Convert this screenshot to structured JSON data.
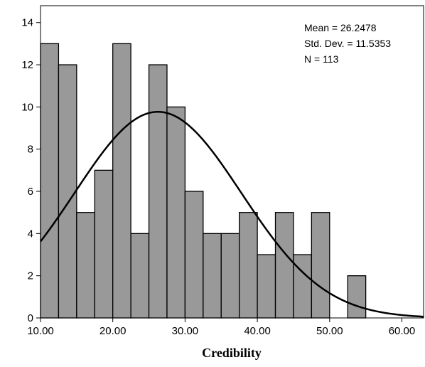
{
  "chart_data": {
    "type": "bar",
    "xlabel": "Credibility",
    "ylabel": "",
    "xlim": [
      10,
      63
    ],
    "ylim": [
      0,
      14.8
    ],
    "x_ticks": [
      "10.00",
      "20.00",
      "30.00",
      "40.00",
      "50.00",
      "60.00"
    ],
    "x_tick_values": [
      10,
      20,
      30,
      40,
      50,
      60
    ],
    "y_ticks": [
      "0",
      "2",
      "4",
      "6",
      "8",
      "10",
      "12",
      "14"
    ],
    "y_tick_values": [
      0,
      2,
      4,
      6,
      8,
      10,
      12,
      14
    ],
    "bin_start": 10,
    "bin_width": 2.5,
    "values": [
      13,
      12,
      5,
      7,
      13,
      4,
      12,
      10,
      6,
      4,
      4,
      5,
      3,
      5,
      3,
      5,
      0,
      2
    ],
    "bar_color": "#999999",
    "curve": {
      "type": "normal",
      "mean": 26.2478,
      "sd": 11.5353,
      "n": 113
    },
    "stats": [
      "Mean = 26.2478",
      "Std. Dev. = 11.5353",
      "N = 113"
    ],
    "grid": false
  }
}
